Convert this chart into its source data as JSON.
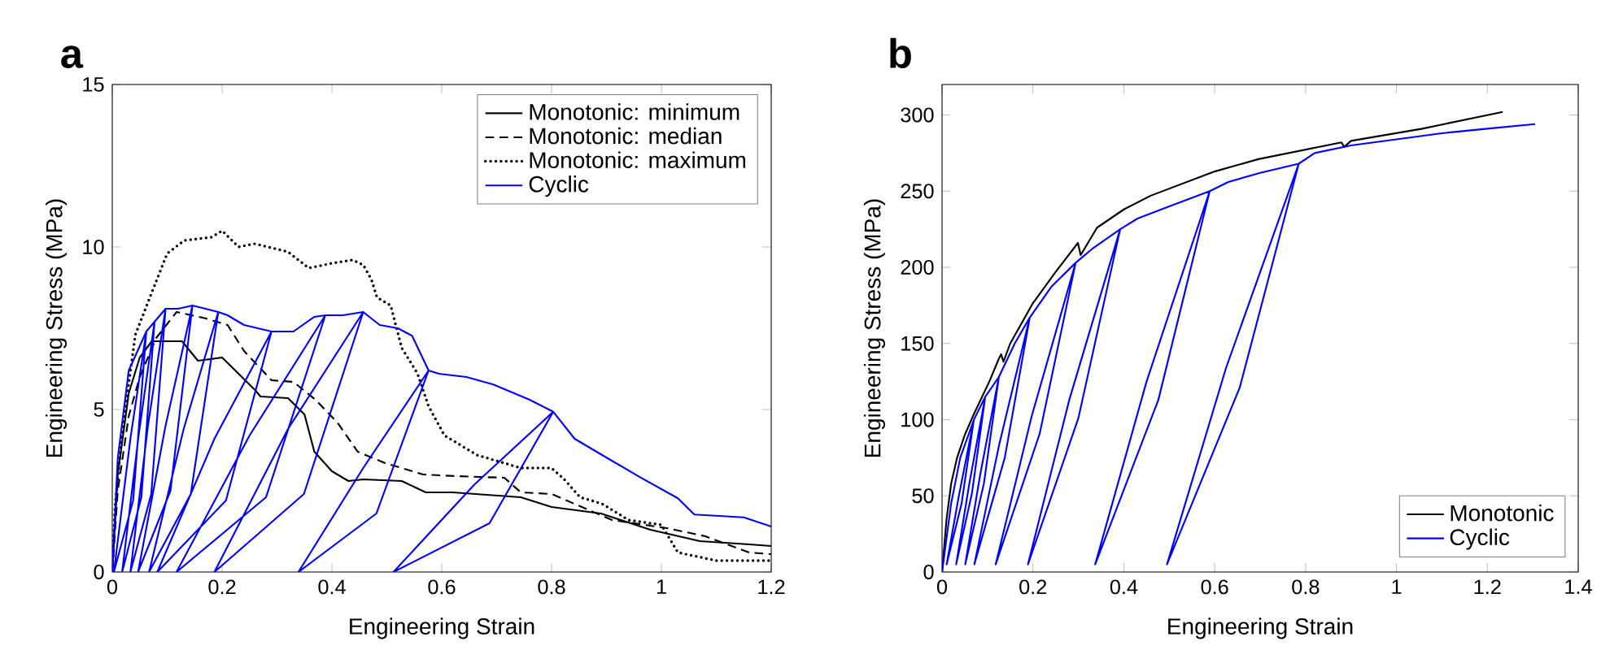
{
  "chart_data": [
    {
      "type": "line",
      "title": "a",
      "xlabel": "Engineering Strain",
      "ylabel": "Engineering Stress (MPa)",
      "xlim": [
        0,
        1.2
      ],
      "ylim": [
        0,
        15
      ],
      "xticks": [
        0,
        0.2,
        0.4,
        0.6,
        0.8,
        1,
        1.2
      ],
      "yticks": [
        0,
        5,
        10,
        15
      ],
      "legend": "top right",
      "series": [
        {
          "name": "Monotonic: minimum",
          "color": "#000000",
          "line_style": "solid",
          "x": [
            0,
            0.01,
            0.03,
            0.05,
            0.072,
            0.127,
            0.156,
            0.2,
            0.26,
            0.27,
            0.32,
            0.35,
            0.368,
            0.4,
            0.43,
            0.457,
            0.527,
            0.571,
            0.62,
            0.744,
            0.8,
            0.89,
            0.98,
            1.07,
            1.16,
            1.2
          ],
          "values": [
            0,
            3.0,
            5.5,
            6.6,
            7.1,
            7.1,
            6.5,
            6.6,
            5.6,
            5.4,
            5.35,
            4.85,
            3.7,
            3.1,
            2.8,
            2.85,
            2.8,
            2.45,
            2.45,
            2.3,
            2.0,
            1.8,
            1.3,
            0.95,
            0.85,
            0.8
          ]
        },
        {
          "name": "Monotonic: median",
          "color": "#000000",
          "line_style": "dashed",
          "x": [
            0,
            0.01,
            0.03,
            0.05,
            0.08,
            0.117,
            0.171,
            0.21,
            0.24,
            0.29,
            0.33,
            0.37,
            0.41,
            0.447,
            0.497,
            0.566,
            0.625,
            0.714,
            0.744,
            0.8,
            0.862,
            0.91,
            1.01,
            1.08,
            1.16,
            1.2
          ],
          "values": [
            0,
            2.5,
            4.8,
            6.0,
            7.2,
            8.0,
            7.8,
            7.6,
            6.8,
            5.9,
            5.85,
            5.3,
            4.6,
            3.7,
            3.35,
            3.0,
            2.95,
            2.9,
            2.45,
            2.4,
            1.95,
            1.6,
            1.35,
            1.1,
            0.6,
            0.55
          ]
        },
        {
          "name": "Monotonic: maximum",
          "color": "#000000",
          "line_style": "dotted",
          "x": [
            0,
            0.005,
            0.018,
            0.042,
            0.072,
            0.1,
            0.131,
            0.18,
            0.2,
            0.23,
            0.26,
            0.32,
            0.358,
            0.4,
            0.438,
            0.457,
            0.472,
            0.482,
            0.507,
            0.527,
            0.556,
            0.576,
            0.605,
            0.664,
            0.744,
            0.8,
            0.823,
            0.852,
            0.892,
            0.94,
            1.0,
            1.03,
            1.1,
            1.2
          ],
          "values": [
            0,
            2.0,
            4.3,
            7.3,
            8.6,
            9.8,
            10.2,
            10.3,
            10.5,
            10.0,
            10.1,
            9.85,
            9.35,
            9.5,
            9.6,
            9.45,
            9.0,
            8.45,
            8.2,
            6.9,
            6.1,
            5.1,
            4.2,
            3.6,
            3.2,
            3.2,
            2.85,
            2.3,
            2.1,
            1.6,
            1.45,
            0.6,
            0.35,
            0.35
          ]
        },
        {
          "name": "Cyclic",
          "color": "#0000ff",
          "line_style": "solid",
          "x": [
            0,
            0.01,
            0.03,
            0.062,
            0.038,
            0.003,
            0.033,
            0.062,
            0.077,
            0.053,
            0.018,
            0.048,
            0.077,
            0.097,
            0.071,
            0.033,
            0.065,
            0.097,
            0.12,
            0.146,
            0.106,
            0.047,
            0.097,
            0.146,
            0.17,
            0.193,
            0.143,
            0.067,
            0.13,
            0.193,
            0.21,
            0.24,
            0.29,
            0.207,
            0.082,
            0.186,
            0.29,
            0.33,
            0.368,
            0.388,
            0.28,
            0.117,
            0.25,
            0.388,
            0.42,
            0.457,
            0.349,
            0.186,
            0.32,
            0.457,
            0.487,
            0.52,
            0.546,
            0.576,
            0.481,
            0.339,
            0.457,
            0.576,
            0.595,
            0.645,
            0.694,
            0.76,
            0.803,
            0.687,
            0.512,
            0.66,
            0.803,
            0.842,
            0.892,
            0.96,
            1.03,
            1.06,
            1.15,
            1.2
          ],
          "values": [
            0,
            3.5,
            6.2,
            7.4,
            2.2,
            0,
            4.1,
            7.4,
            7.7,
            2.3,
            0,
            4.2,
            7.7,
            8.1,
            2.4,
            0,
            4.5,
            8.1,
            8.1,
            8.2,
            2.5,
            0,
            4.5,
            8.2,
            8.1,
            8.0,
            2.4,
            0,
            4.4,
            8.0,
            7.9,
            7.6,
            7.4,
            2.2,
            0,
            4.1,
            7.4,
            7.4,
            7.85,
            7.9,
            2.3,
            0,
            4.2,
            7.9,
            7.9,
            8.0,
            2.4,
            0,
            4.4,
            8.0,
            7.6,
            7.5,
            7.27,
            6.2,
            1.8,
            0,
            3.2,
            6.2,
            6.1,
            6.0,
            5.77,
            5.3,
            4.93,
            1.5,
            0,
            2.7,
            4.93,
            4.1,
            3.6,
            2.93,
            2.27,
            1.77,
            1.68,
            1.4
          ]
        }
      ]
    },
    {
      "type": "line",
      "title": "b",
      "xlabel": "Engineering Strain",
      "ylabel": "Engineering Stress (MPa)",
      "xlim": [
        0,
        1.4
      ],
      "ylim": [
        0,
        320
      ],
      "xticks": [
        0,
        0.2,
        0.4,
        0.6,
        0.8,
        1,
        1.2,
        1.4
      ],
      "yticks": [
        0,
        50,
        100,
        150,
        200,
        250,
        300
      ],
      "legend": "bottom right",
      "series": [
        {
          "name": "Monotonic",
          "color": "#000000",
          "line_style": "solid",
          "x": [
            0,
            0.01,
            0.02,
            0.033,
            0.05,
            0.069,
            0.104,
            0.125,
            0.13,
            0.135,
            0.15,
            0.199,
            0.25,
            0.299,
            0.305,
            0.341,
            0.4,
            0.459,
            0.601,
            0.696,
            0.879,
            0.885,
            0.9,
            1.057,
            1.234
          ],
          "values": [
            0,
            35,
            58,
            75,
            90,
            103,
            125,
            140,
            143,
            138,
            150,
            176,
            197,
            216,
            208,
            226,
            238,
            247,
            263,
            271,
            282,
            279,
            283,
            291,
            302
          ]
        },
        {
          "name": "Cyclic",
          "color": "#0000ff",
          "line_style": "solid",
          "x": [
            0,
            0.02,
            0.04,
            0.07,
            0.043,
            0.01,
            0.037,
            0.07,
            0.095,
            0.066,
            0.031,
            0.06,
            0.095,
            0.125,
            0.092,
            0.051,
            0.084,
            0.125,
            0.16,
            0.193,
            0.138,
            0.071,
            0.126,
            0.193,
            0.24,
            0.294,
            0.215,
            0.118,
            0.197,
            0.294,
            0.33,
            0.392,
            0.3,
            0.189,
            0.28,
            0.392,
            0.43,
            0.5,
            0.589,
            0.476,
            0.337,
            0.45,
            0.589,
            0.63,
            0.7,
            0.785,
            0.655,
            0.495,
            0.625,
            0.785,
            0.82,
            0.9,
            1.0,
            1.1,
            1.2,
            1.305
          ],
          "values": [
            0,
            45,
            75,
            100,
            45,
            5,
            50,
            100,
            115,
            52,
            5,
            58,
            115,
            128,
            58,
            5,
            64,
            128,
            150,
            167,
            75,
            5,
            84,
            167,
            187,
            203,
            91,
            5,
            102,
            203,
            212,
            225,
            101,
            5,
            113,
            225,
            232,
            240,
            250,
            113,
            5,
            125,
            250,
            256,
            262,
            268,
            121,
            5,
            134,
            268,
            275,
            280,
            284,
            288,
            291,
            294
          ]
        }
      ]
    }
  ]
}
